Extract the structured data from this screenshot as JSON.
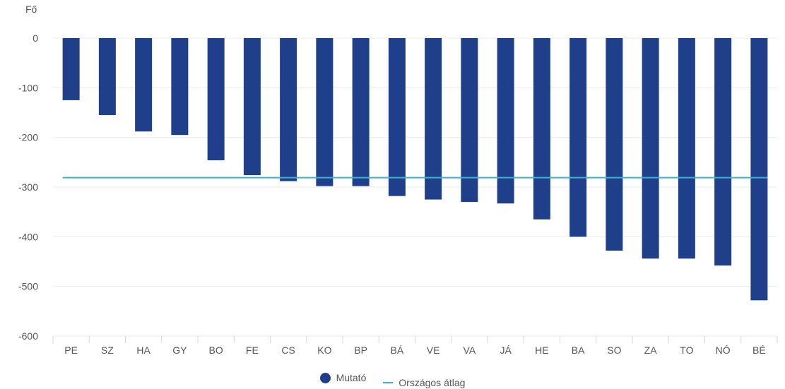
{
  "chart_data": {
    "type": "bar",
    "ylabel": "Fő",
    "ylim": [
      -600,
      0
    ],
    "yticks": [
      0,
      -100,
      -200,
      -300,
      -400,
      -500,
      -600
    ],
    "categories": [
      "PE",
      "SZ",
      "HA",
      "GY",
      "BO",
      "FE",
      "CS",
      "KO",
      "BP",
      "BÁ",
      "VE",
      "VA",
      "JÁ",
      "HE",
      "BA",
      "SO",
      "ZA",
      "TO",
      "NÓ",
      "BÉ"
    ],
    "series": [
      {
        "name": "Mutató",
        "type": "bar",
        "values": [
          -125,
          -155,
          -188,
          -195,
          -246,
          -276,
          -288,
          -298,
          -298,
          -318,
          -325,
          -330,
          -333,
          -365,
          -400,
          -428,
          -444,
          -444,
          -458,
          -528
        ]
      },
      {
        "name": "Országos átlag",
        "type": "line",
        "value": -281
      }
    ],
    "grid": true,
    "legend_position": "bottom"
  },
  "colors": {
    "bar": "#1f3f8a",
    "average_line": "#3cb4cf",
    "grid": "#ebebeb",
    "text": "#555555"
  }
}
